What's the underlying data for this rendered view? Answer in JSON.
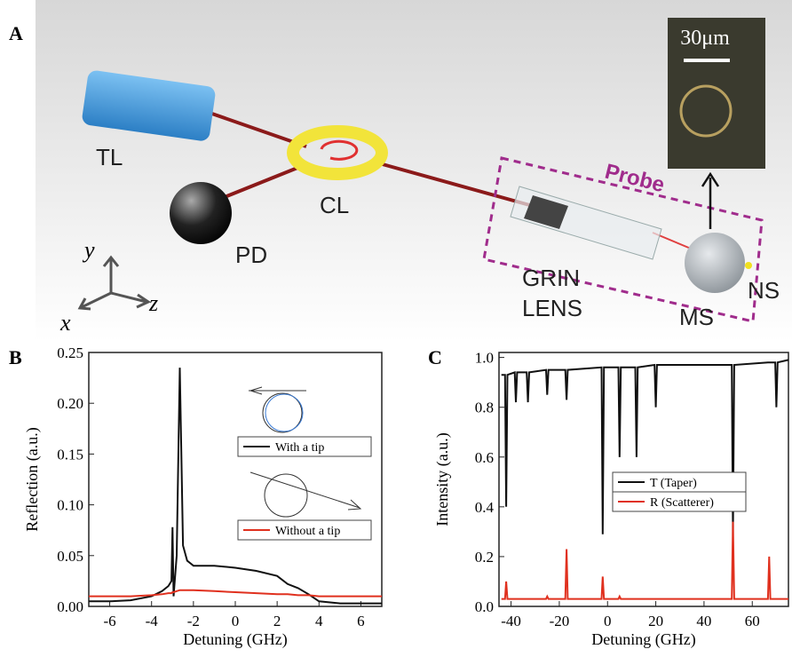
{
  "diagram": {
    "panel_label": "A",
    "laser": "TL",
    "circulator": "CL",
    "detector": "PD",
    "lens": [
      "GRIN",
      "LENS"
    ],
    "microsphere": "MS",
    "nanoscatterer": "NS",
    "probe": "Probe",
    "scale_bar": "30μm",
    "axes": {
      "x": "x",
      "y": "y",
      "z": "z"
    }
  },
  "chart_data": [
    {
      "type": "line",
      "panel_label": "B",
      "x_label": "Detuning (GHz)",
      "y_label": "Reflection (a.u.)",
      "x": [
        -7,
        -6,
        -5,
        -4,
        -3.5,
        -3.2,
        -3.05,
        -3.0,
        -2.95,
        -2.8,
        -2.65,
        -2.5,
        -2.3,
        -2,
        -1,
        0,
        1,
        2,
        2.5,
        3,
        3.5,
        4,
        5,
        6,
        7
      ],
      "series": [
        {
          "name": "With a tip",
          "color": "#111111",
          "values": [
            0.005,
            0.005,
            0.006,
            0.01,
            0.015,
            0.02,
            0.025,
            0.078,
            0.01,
            0.05,
            0.235,
            0.06,
            0.045,
            0.04,
            0.04,
            0.038,
            0.035,
            0.03,
            0.022,
            0.018,
            0.012,
            0.005,
            0.003,
            0.003,
            0.003
          ]
        },
        {
          "name": "Without a tip",
          "color": "#e0301e",
          "values": [
            0.01,
            0.01,
            0.01,
            0.011,
            0.012,
            0.013,
            0.013,
            0.014,
            0.014,
            0.015,
            0.016,
            0.016,
            0.016,
            0.016,
            0.015,
            0.014,
            0.013,
            0.012,
            0.012,
            0.011,
            0.011,
            0.01,
            0.01,
            0.01,
            0.01
          ]
        }
      ],
      "xlim": [
        -7,
        7
      ],
      "xticks": [
        -6,
        -4,
        -2,
        0,
        2,
        4,
        6
      ],
      "ylim": [
        0,
        0.25
      ],
      "yticks": [
        {
          "value": 0,
          "label": "0.00"
        },
        {
          "value": 0.05,
          "label": "0.05"
        },
        {
          "value": 0.1,
          "label": "0.10"
        },
        {
          "value": 0.15,
          "label": "0.15"
        },
        {
          "value": 0.2,
          "label": "0.20"
        },
        {
          "value": 0.25,
          "label": "0.25"
        }
      ],
      "legend": "upper right"
    },
    {
      "type": "line",
      "panel_label": "C",
      "x_label": "Detuning (GHz)",
      "y_label": "Intensity (a.u.)",
      "x": [
        -44,
        -42.5,
        -42,
        -41.5,
        -38.5,
        -38,
        -37.5,
        -33.5,
        -33,
        -32.5,
        -25.5,
        -25,
        -24.5,
        -17.5,
        -17,
        -16.5,
        -2.5,
        -2,
        -1.5,
        4.5,
        5,
        5.5,
        11.5,
        12,
        12.5,
        19.5,
        20,
        20.5,
        51.5,
        52,
        52.5,
        66.5,
        67,
        67.5,
        69.5,
        70,
        70.5,
        75
      ],
      "series": [
        {
          "name": "T (Taper)",
          "color": "#111111",
          "values": [
            0.93,
            0.93,
            0.4,
            0.93,
            0.94,
            0.82,
            0.94,
            0.94,
            0.82,
            0.94,
            0.95,
            0.85,
            0.95,
            0.95,
            0.83,
            0.95,
            0.96,
            0.29,
            0.96,
            0.96,
            0.6,
            0.96,
            0.96,
            0.6,
            0.96,
            0.97,
            0.8,
            0.97,
            0.97,
            0.28,
            0.97,
            0.98,
            0.98,
            0.98,
            0.98,
            0.8,
            0.98,
            0.99
          ]
        },
        {
          "name": "R (Scatterer)",
          "color": "#e0301e",
          "values": [
            0.03,
            0.03,
            0.1,
            0.03,
            0.03,
            0.03,
            0.03,
            0.03,
            0.03,
            0.03,
            0.03,
            0.04,
            0.03,
            0.03,
            0.23,
            0.03,
            0.03,
            0.12,
            0.03,
            0.03,
            0.04,
            0.03,
            0.03,
            0.03,
            0.03,
            0.03,
            0.03,
            0.03,
            0.03,
            0.34,
            0.03,
            0.03,
            0.2,
            0.03,
            0.03,
            0.03,
            0.03,
            0.03
          ]
        }
      ],
      "xlim": [
        -45,
        75
      ],
      "xticks": [
        -40,
        -20,
        0,
        20,
        40,
        60
      ],
      "ylim": [
        0,
        1.02
      ],
      "yticks": [
        {
          "value": 0,
          "label": "0.0"
        },
        {
          "value": 0.2,
          "label": "0.2"
        },
        {
          "value": 0.4,
          "label": "0.4"
        },
        {
          "value": 0.6,
          "label": "0.6"
        },
        {
          "value": 0.8,
          "label": "0.8"
        },
        {
          "value": 1,
          "label": "1.0"
        }
      ],
      "legend": "center right"
    }
  ]
}
